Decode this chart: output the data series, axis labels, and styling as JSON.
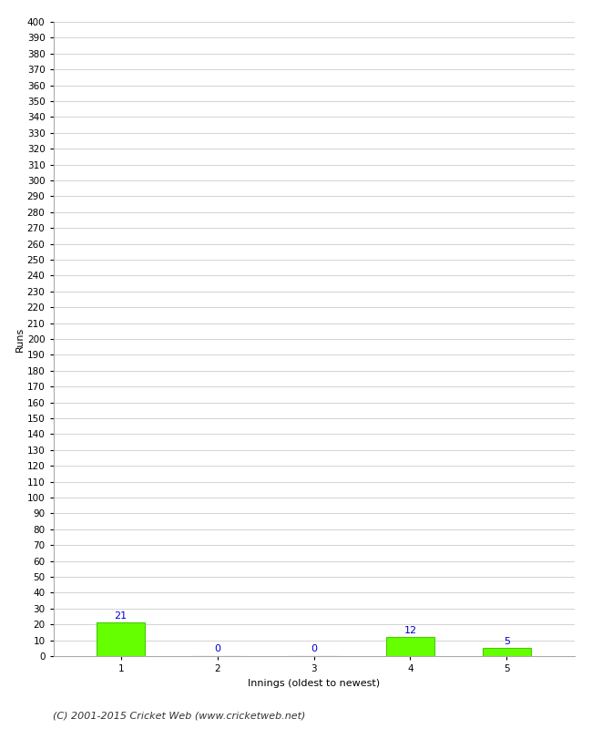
{
  "categories": [
    1,
    2,
    3,
    4,
    5
  ],
  "values": [
    21,
    0,
    0,
    12,
    5
  ],
  "bar_color": "#66ff00",
  "bar_edge_color": "#44cc00",
  "xlabel": "Innings (oldest to newest)",
  "ylabel": "Runs",
  "ylim": [
    0,
    400
  ],
  "label_color": "#0000cc",
  "footer": "(C) 2001-2015 Cricket Web (www.cricketweb.net)",
  "background_color": "#ffffff",
  "grid_color": "#cccccc",
  "spine_color": "#aaaaaa",
  "tick_fontsize": 7.5,
  "label_fontsize": 8,
  "footer_fontsize": 8
}
